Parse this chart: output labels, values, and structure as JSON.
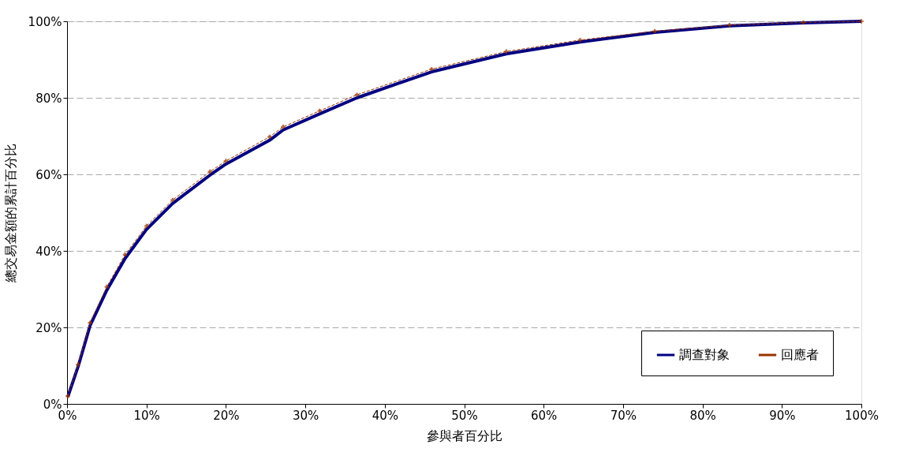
{
  "chart_data": {
    "type": "line",
    "xlabel": "參與者百分比",
    "ylabel": "總交易金額的累計百分比",
    "x": [
      0.1,
      1.4,
      2.9,
      5.0,
      7.3,
      10.0,
      13.3,
      18.0,
      20.0,
      25.5,
      27.2,
      31.8,
      36.5,
      45.9,
      55.3,
      64.6,
      74.0,
      83.4,
      92.7,
      100
    ],
    "series": [
      {
        "name": "調查對象",
        "color": "#000080",
        "marker": "none",
        "line_style": "solid",
        "values": [
          1.9,
          9.8,
          20.5,
          29.7,
          38.0,
          45.6,
          52.4,
          59.8,
          62.7,
          68.9,
          71.6,
          75.8,
          80.0,
          86.8,
          91.5,
          94.6,
          97.1,
          98.8,
          99.6,
          100
        ]
      },
      {
        "name": "回應者",
        "color": "#993300",
        "marker": "cross",
        "line_style": "dashed",
        "values": [
          2.0,
          10.3,
          21.2,
          30.6,
          39.0,
          46.5,
          53.3,
          60.7,
          63.5,
          69.8,
          72.4,
          76.6,
          80.8,
          87.5,
          92.1,
          95.1,
          97.4,
          99.0,
          99.7,
          100
        ]
      }
    ],
    "xlim": [
      0,
      100
    ],
    "ylim": [
      0,
      100
    ],
    "xticks": [
      {
        "value": 0,
        "label": "0%"
      },
      {
        "value": 10,
        "label": "10%"
      },
      {
        "value": 20,
        "label": "20%"
      },
      {
        "value": 30,
        "label": "30%"
      },
      {
        "value": 40,
        "label": "40%"
      },
      {
        "value": 50,
        "label": "50%"
      },
      {
        "value": 60,
        "label": "60%"
      },
      {
        "value": 70,
        "label": "70%"
      },
      {
        "value": 80,
        "label": "80%"
      },
      {
        "value": 90,
        "label": "90%"
      },
      {
        "value": 100,
        "label": "100%"
      }
    ],
    "yticks": [
      {
        "value": 0,
        "label": "0%"
      },
      {
        "value": 20,
        "label": "20%"
      },
      {
        "value": 40,
        "label": "40%"
      },
      {
        "value": 60,
        "label": "60%"
      },
      {
        "value": 80,
        "label": "80%"
      },
      {
        "value": 100,
        "label": "100%"
      }
    ],
    "grid": "y",
    "legend": "bottom right"
  }
}
